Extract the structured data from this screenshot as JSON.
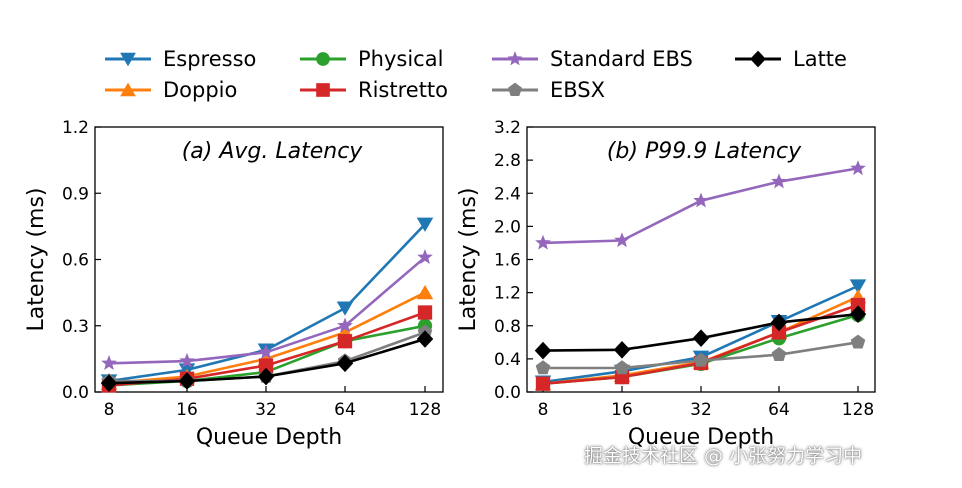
{
  "legend": [
    {
      "name": "Espresso",
      "color": "#1f77b4",
      "marker": "triangle-down"
    },
    {
      "name": "Doppio",
      "color": "#ff7f0e",
      "marker": "triangle-up"
    },
    {
      "name": "Physical",
      "color": "#2ca02c",
      "marker": "circle"
    },
    {
      "name": "Ristretto",
      "color": "#d62728",
      "marker": "square"
    },
    {
      "name": "Standard EBS",
      "color": "#9467bd",
      "marker": "star"
    },
    {
      "name": "EBSX",
      "color": "#7f7f7f",
      "marker": "pentagon"
    },
    {
      "name": "Latte",
      "color": "#000000",
      "marker": "diamond"
    }
  ],
  "chart_data": [
    {
      "type": "line",
      "title": "(a) Avg. Latency",
      "xlabel": "Queue Depth",
      "ylabel": "Latency (ms)",
      "categories": [
        "8",
        "16",
        "32",
        "64",
        "128"
      ],
      "yticks": [
        "0.0",
        "0.3",
        "0.6",
        "0.9",
        "1.2"
      ],
      "ylim": [
        0,
        1.2
      ],
      "grid": false,
      "series": [
        {
          "name": "Espresso",
          "values": [
            0.05,
            0.1,
            0.19,
            0.38,
            0.76
          ]
        },
        {
          "name": "Doppio",
          "values": [
            0.04,
            0.07,
            0.15,
            0.27,
            0.45
          ]
        },
        {
          "name": "Physical",
          "values": [
            0.03,
            0.05,
            0.09,
            0.23,
            0.3
          ]
        },
        {
          "name": "Ristretto",
          "values": [
            0.03,
            0.06,
            0.12,
            0.23,
            0.36
          ]
        },
        {
          "name": "Standard EBS",
          "values": [
            0.13,
            0.14,
            0.18,
            0.3,
            0.61
          ]
        },
        {
          "name": "EBSX",
          "values": [
            0.05,
            0.05,
            0.07,
            0.14,
            0.27
          ]
        },
        {
          "name": "Latte",
          "values": [
            0.04,
            0.05,
            0.07,
            0.13,
            0.24
          ]
        }
      ]
    },
    {
      "type": "line",
      "title": "(b) P99.9 Latency",
      "xlabel": "Queue Depth",
      "ylabel": "Latency (ms)",
      "categories": [
        "8",
        "16",
        "32",
        "64",
        "128"
      ],
      "yticks": [
        "0.0",
        "0.4",
        "0.8",
        "1.2",
        "1.6",
        "2.0",
        "2.4",
        "2.8",
        "3.2"
      ],
      "ylim": [
        0,
        3.2
      ],
      "grid": false,
      "series": [
        {
          "name": "Espresso",
          "values": [
            0.12,
            0.25,
            0.42,
            0.85,
            1.28
          ]
        },
        {
          "name": "Doppio",
          "values": [
            0.1,
            0.2,
            0.36,
            0.72,
            1.15
          ]
        },
        {
          "name": "Physical",
          "values": [
            0.1,
            0.18,
            0.34,
            0.65,
            0.93
          ]
        },
        {
          "name": "Ristretto",
          "values": [
            0.1,
            0.18,
            0.35,
            0.72,
            1.05
          ]
        },
        {
          "name": "Standard EBS",
          "values": [
            1.8,
            1.83,
            2.31,
            2.54,
            2.7
          ]
        },
        {
          "name": "EBSX",
          "values": [
            0.29,
            0.29,
            0.38,
            0.45,
            0.6
          ]
        },
        {
          "name": "Latte",
          "values": [
            0.5,
            0.51,
            0.65,
            0.84,
            0.94
          ]
        }
      ]
    }
  ],
  "watermark": "掘金技术社区 @ 小张努力学习中"
}
